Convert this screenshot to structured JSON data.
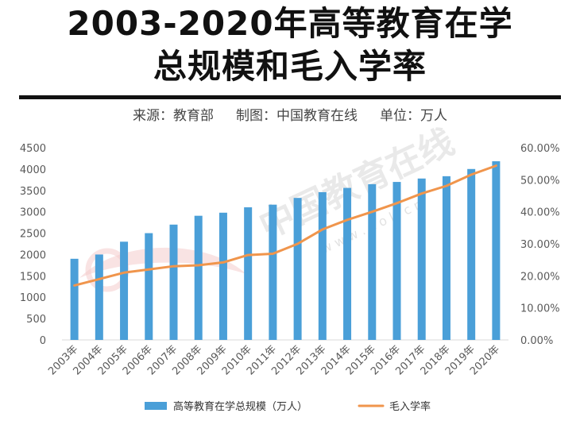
{
  "header": {
    "title_line1": "2003-2020年高等教育在学",
    "title_line2": "总规模和毛入学率",
    "source": "来源：教育部",
    "charted_by": "制图：中国教育在线",
    "unit": "单位：万人"
  },
  "watermark": {
    "text": "中国教育在线",
    "url": "w w w . e o l . c n"
  },
  "chart_data": {
    "type": "bar+line",
    "categories": [
      "2003年",
      "2004年",
      "2005年",
      "2006年",
      "2007年",
      "2008年",
      "2009年",
      "2010年",
      "2011年",
      "2012年",
      "2013年",
      "2014年",
      "2015年",
      "2016年",
      "2017年",
      "2018年",
      "2019年",
      "2020年"
    ],
    "series": [
      {
        "name": "高等教育在学总规模（万人）",
        "type": "bar",
        "axis": "left",
        "color": "#4a9fd8",
        "values": [
          1900,
          2000,
          2300,
          2500,
          2700,
          2907,
          2979,
          3105,
          3167,
          3325,
          3460,
          3559,
          3647,
          3699,
          3779,
          3833,
          4002,
          4183
        ]
      },
      {
        "name": "毛入学率",
        "type": "line",
        "axis": "right",
        "color": "#f0954c",
        "values": [
          17.0,
          19.0,
          21.0,
          22.0,
          23.0,
          23.3,
          24.2,
          26.5,
          26.9,
          30.0,
          34.5,
          37.5,
          40.0,
          42.7,
          45.7,
          48.1,
          51.6,
          54.4
        ]
      }
    ],
    "y_left": {
      "min": 0,
      "max": 4500,
      "step": 500,
      "ticks": [
        "0",
        "500",
        "1000",
        "1500",
        "2000",
        "2500",
        "3000",
        "3500",
        "4000",
        "4500"
      ]
    },
    "y_right": {
      "min": 0,
      "max": 60,
      "step": 10,
      "ticks": [
        "0.00%",
        "10.00%",
        "20.00%",
        "30.00%",
        "40.00%",
        "50.00%",
        "60.00%"
      ]
    },
    "legend": [
      {
        "label": "高等教育在学总规模（万人）",
        "color": "#4a9fd8",
        "kind": "bar"
      },
      {
        "label": "毛入学率",
        "color": "#f0954c",
        "kind": "line"
      }
    ],
    "legend_position": "bottom",
    "grid": false
  }
}
